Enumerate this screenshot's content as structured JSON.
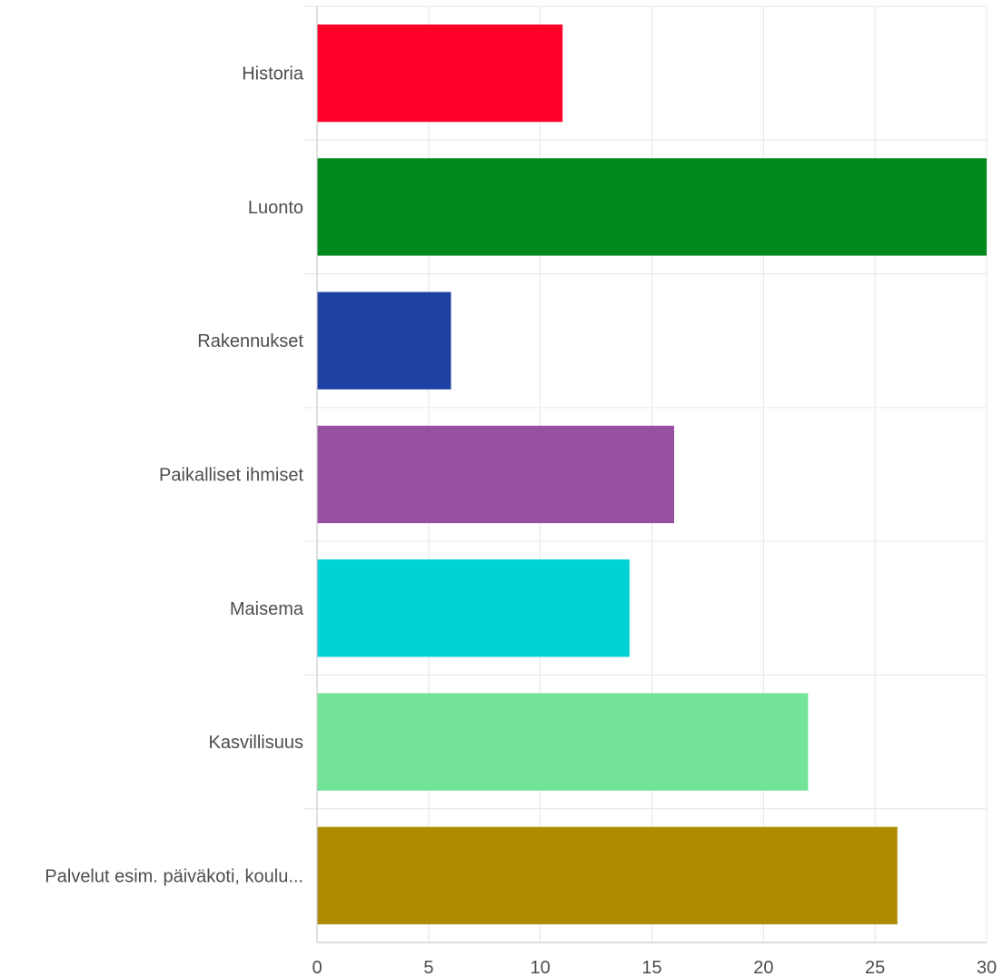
{
  "chart_data": {
    "type": "bar",
    "orientation": "horizontal",
    "categories": [
      "Historia",
      "Luonto",
      "Rakennukset",
      "Paikalliset ihmiset",
      "Maisema",
      "Kasvillisuus",
      "Palvelut esim. päiväkoti, koulu..."
    ],
    "values": [
      11,
      30,
      6,
      16,
      14,
      22,
      26
    ],
    "colors": [
      "#ff0029",
      "#008a1e",
      "#1f41a3",
      "#974fa2",
      "#00d2d5",
      "#73e397",
      "#af8b00"
    ],
    "xlim": [
      0,
      30
    ],
    "xticks": [
      0,
      5,
      10,
      15,
      20,
      25,
      30
    ],
    "grid": true,
    "legend": "none",
    "title": "",
    "xlabel": "",
    "ylabel": ""
  }
}
